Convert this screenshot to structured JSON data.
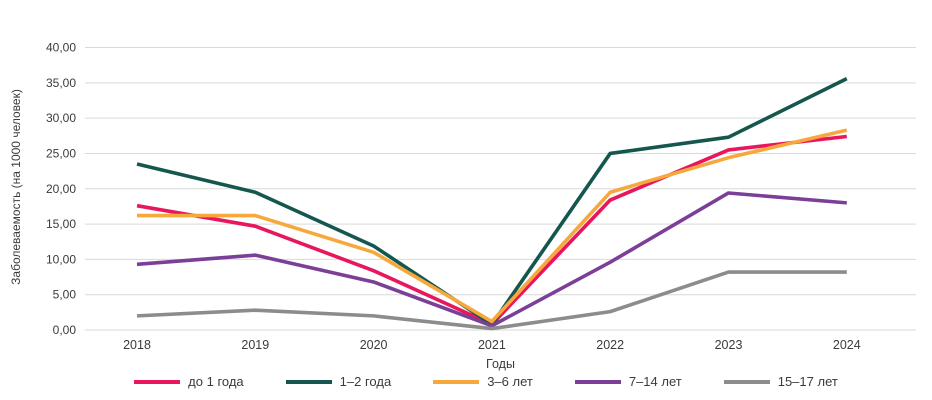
{
  "chart_data": {
    "type": "line",
    "title": "",
    "xlabel": "Годы",
    "ylabel": "Заболеваемость (на 1000 человек)",
    "categories": [
      "2018",
      "2019",
      "2020",
      "2021",
      "2022",
      "2023",
      "2024"
    ],
    "series": [
      {
        "name": "до 1 года",
        "color": "#e8175d",
        "values": [
          17.6,
          14.7,
          8.4,
          0.8,
          18.4,
          25.5,
          27.4
        ]
      },
      {
        "name": "1–2 года",
        "color": "#15574f",
        "values": [
          23.5,
          19.5,
          11.9,
          0.8,
          25.0,
          27.3,
          35.6
        ]
      },
      {
        "name": "3–6 лет",
        "color": "#f6a83d",
        "values": [
          16.2,
          16.2,
          11.0,
          1.2,
          19.5,
          24.4,
          28.3
        ]
      },
      {
        "name": "7–14 лет",
        "color": "#7b3f98",
        "values": [
          9.3,
          10.6,
          6.8,
          0.6,
          9.6,
          19.4,
          18.0
        ]
      },
      {
        "name": "15–17 лет",
        "color": "#8c8c8c",
        "values": [
          2.0,
          2.8,
          2.0,
          0.2,
          2.6,
          8.2,
          8.2
        ]
      }
    ],
    "ylim": [
      0,
      40
    ],
    "y_tick_step": 5,
    "y_tick_labels": [
      "0,00",
      "5,00",
      "10,00",
      "15,00",
      "20,00",
      "25,00",
      "30,00",
      "35,00",
      "40,00"
    ],
    "grid": true,
    "legend_position": "bottom",
    "gridline_color": "#d9d9d9",
    "text_color": "#3b3b3b"
  }
}
